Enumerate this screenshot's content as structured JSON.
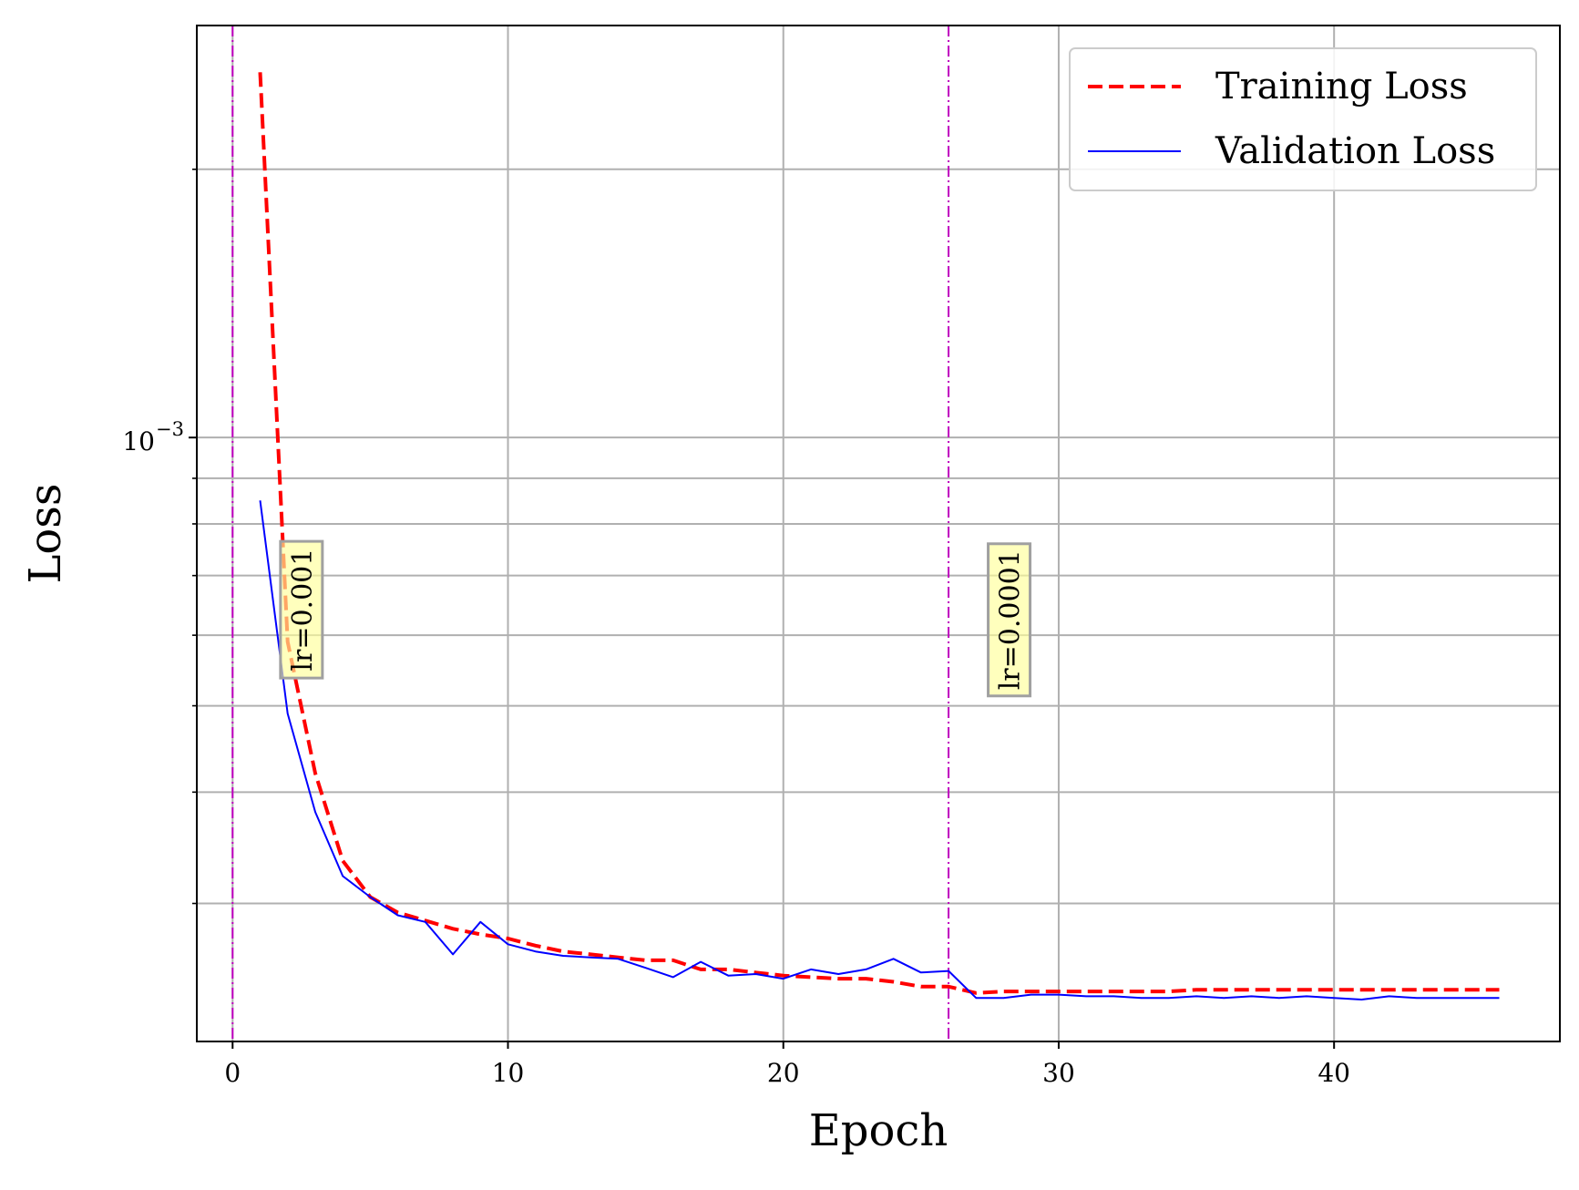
{
  "chart_data": {
    "type": "line",
    "xlabel": "Epoch",
    "ylabel": "Loss",
    "yscale": "log",
    "xlim": [
      -1.3,
      48.2
    ],
    "ylim": [
      0.00021,
      0.0029
    ],
    "x_ticks": [
      0,
      10,
      20,
      30,
      40
    ],
    "y_major_tick": {
      "value": 0.001,
      "label_base": "10",
      "label_exp": "−3"
    },
    "y_minor_ticks": [
      0.0003,
      0.0004,
      0.0005,
      0.0006,
      0.0007,
      0.0008,
      0.0009,
      0.002
    ],
    "grid": true,
    "legend_position": "upper right",
    "series": [
      {
        "name": "Training Loss",
        "color": "#ff0000",
        "style": "dashed",
        "x": [
          1,
          2,
          3,
          4,
          5,
          6,
          7,
          8,
          9,
          10,
          11,
          12,
          13,
          14,
          15,
          16,
          17,
          18,
          19,
          20,
          21,
          22,
          23,
          24,
          25,
          26,
          27,
          28,
          29,
          30,
          31,
          32,
          33,
          34,
          35,
          36,
          37,
          38,
          39,
          40,
          41,
          42,
          43,
          44,
          45,
          46
        ],
        "y": [
          0.00257,
          0.00059,
          0.00042,
          0.000335,
          0.000305,
          0.000293,
          0.000287,
          0.000281,
          0.000277,
          0.000274,
          0.000269,
          0.000265,
          0.000263,
          0.000261,
          0.000259,
          0.000259,
          0.000253,
          0.000253,
          0.000251,
          0.000249,
          0.000248,
          0.000247,
          0.000247,
          0.000245,
          0.000242,
          0.000242,
          0.000238,
          0.000239,
          0.000239,
          0.000239,
          0.000239,
          0.000239,
          0.000239,
          0.000239,
          0.00024,
          0.00024,
          0.00024,
          0.00024,
          0.00024,
          0.00024,
          0.00024,
          0.00024,
          0.00024,
          0.00024,
          0.00024,
          0.00024
        ]
      },
      {
        "name": "Validation Loss",
        "color": "#0000ff",
        "style": "solid",
        "x": [
          1,
          2,
          3,
          4,
          5,
          6,
          7,
          8,
          9,
          10,
          11,
          12,
          13,
          14,
          15,
          16,
          17,
          18,
          19,
          20,
          21,
          22,
          23,
          24,
          25,
          26,
          27,
          28,
          29,
          30,
          31,
          32,
          33,
          34,
          35,
          36,
          37,
          38,
          39,
          40,
          41,
          42,
          43,
          44,
          45,
          46
        ],
        "y": [
          0.00085,
          0.00049,
          0.00038,
          0.000322,
          0.000305,
          0.000291,
          0.000286,
          0.000263,
          0.000286,
          0.00027,
          0.000265,
          0.000262,
          0.000261,
          0.00026,
          0.000254,
          0.000248,
          0.000258,
          0.000249,
          0.00025,
          0.000247,
          0.000253,
          0.00025,
          0.000253,
          0.00026,
          0.000251,
          0.000252,
          0.000235,
          0.000235,
          0.000237,
          0.000237,
          0.000236,
          0.000236,
          0.000235,
          0.000235,
          0.000236,
          0.000235,
          0.000236,
          0.000235,
          0.000236,
          0.000235,
          0.000234,
          0.000236,
          0.000235,
          0.000235,
          0.000235,
          0.000235
        ]
      }
    ],
    "vlines": [
      {
        "x": 0,
        "color": "#bf00bf",
        "style": "dashdot"
      },
      {
        "x": 26,
        "color": "#bf00bf",
        "style": "dashdot"
      }
    ],
    "annotations": [
      {
        "text": "lr=0.001",
        "x": 2.5,
        "y_frac": 0.575,
        "rotation": -90,
        "background": "#ffff99"
      },
      {
        "text": "lr=0.0001",
        "x": 28.2,
        "y_frac": 0.585,
        "rotation": -90,
        "background": "#ffff99"
      }
    ]
  }
}
